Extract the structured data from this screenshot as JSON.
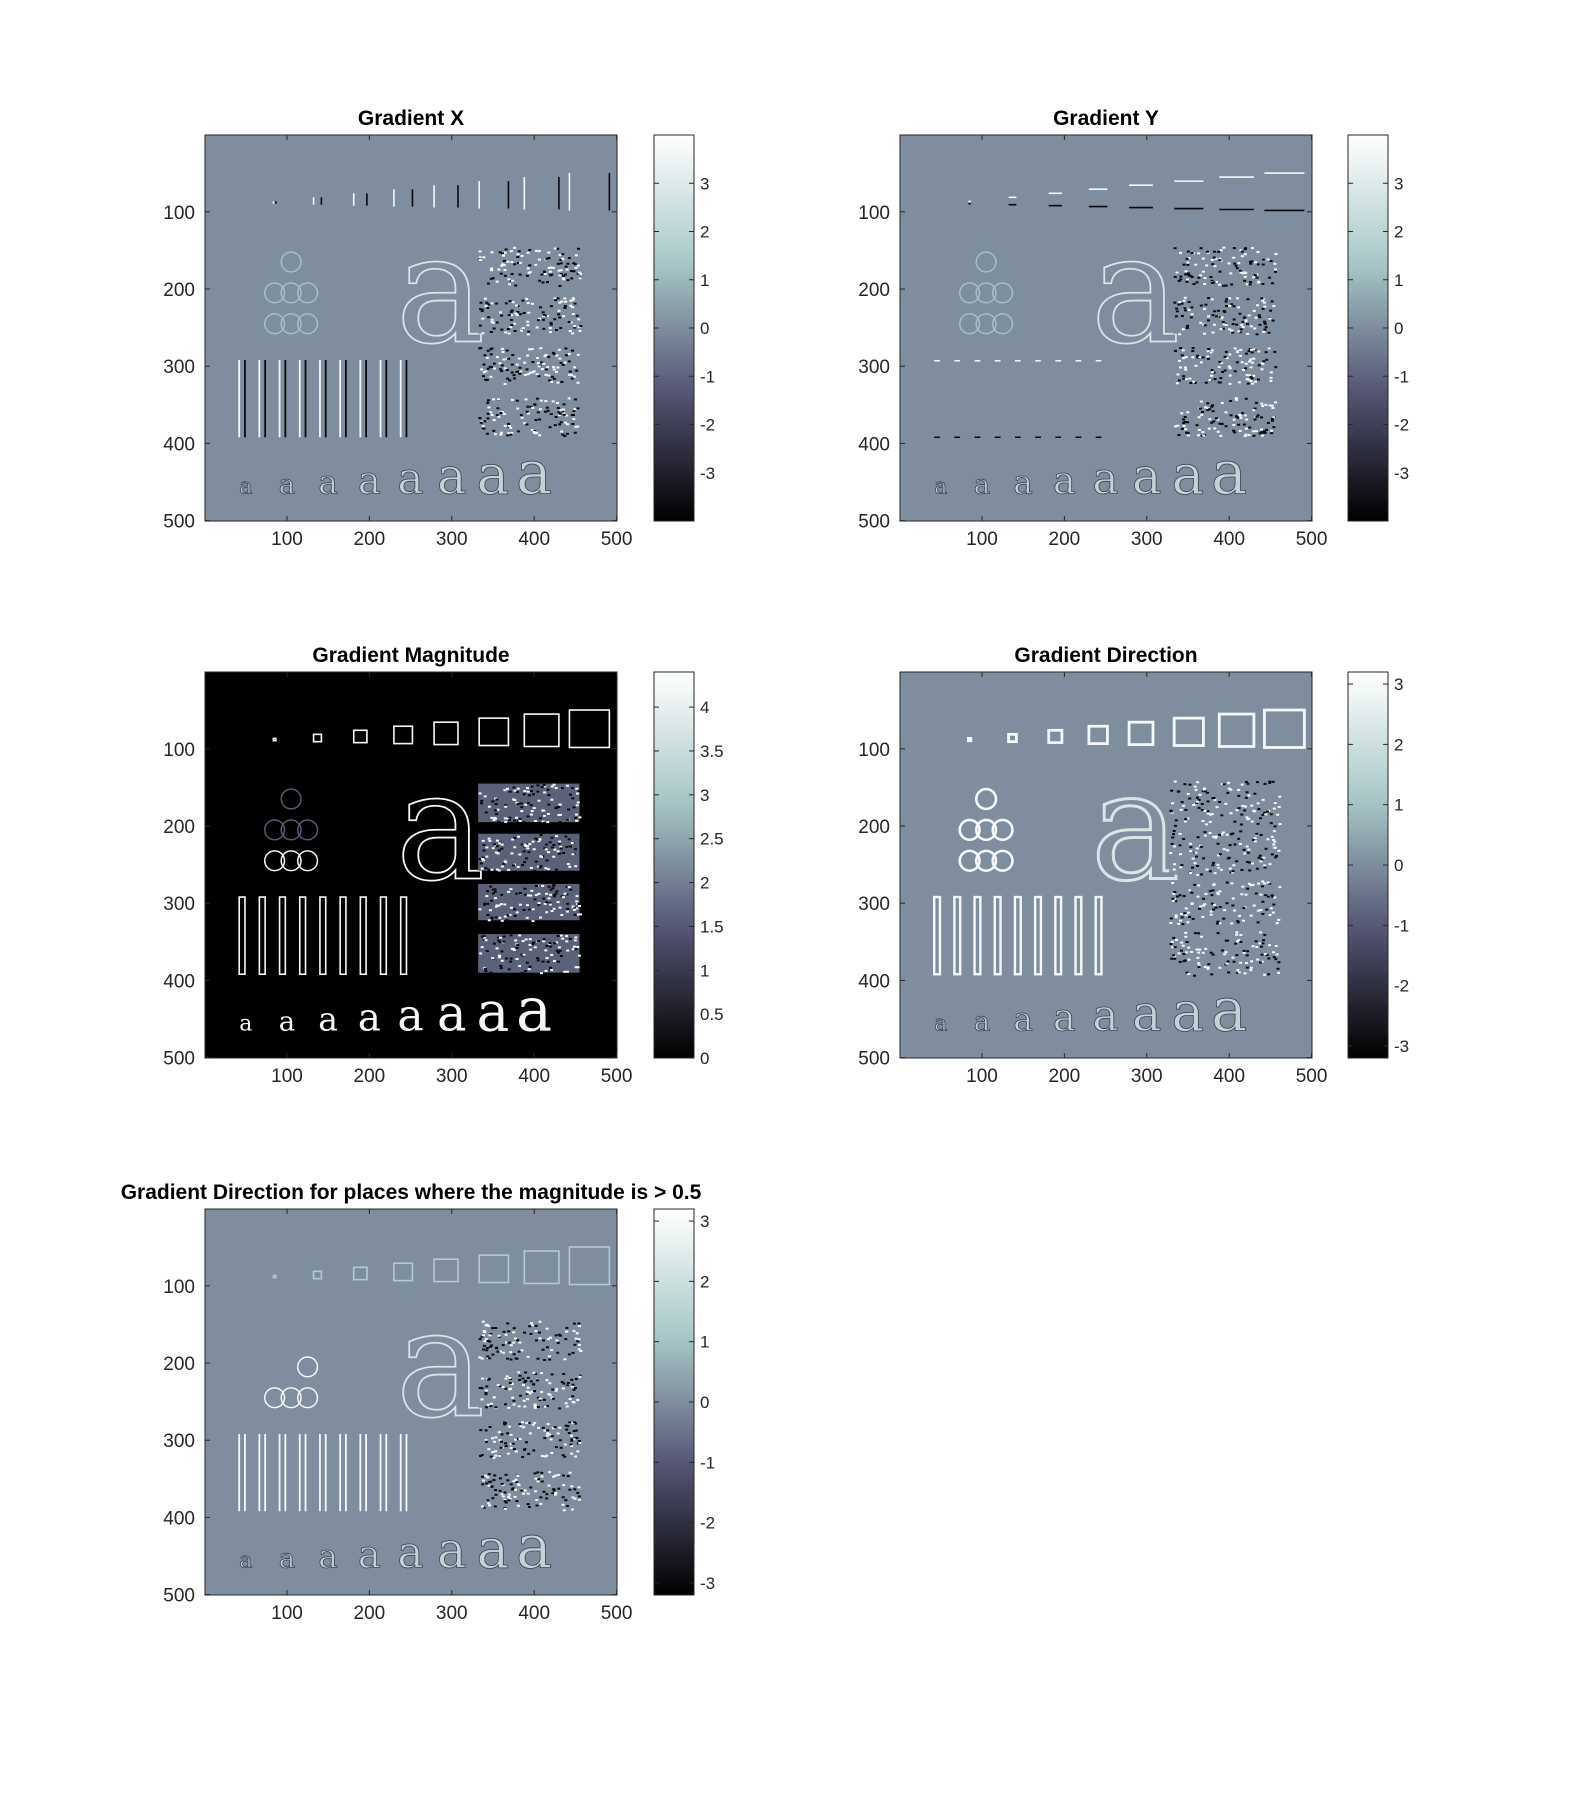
{
  "figure": {
    "colormap": "bone",
    "colormap_stops": [
      "#000000",
      "#545474",
      "#a7c7c7",
      "#ffffff"
    ],
    "image_motif": [
      "rectangles",
      "circles",
      "letter-a",
      "vertical-bars",
      "noise-rectangles",
      "small-letters-a"
    ]
  },
  "chart_data": [
    {
      "type": "heatmap",
      "name": "gradient-x",
      "title": "Gradient X",
      "xlabel": "",
      "ylabel": "",
      "xlim": [
        0.5,
        500.5
      ],
      "ylim": [
        0.5,
        500.5
      ],
      "y_reversed": true,
      "xticks": [
        100,
        200,
        300,
        400,
        500
      ],
      "yticks": [
        100,
        200,
        300,
        400,
        500
      ],
      "clim": [
        -4,
        4
      ],
      "cbticks": [
        -3,
        -2,
        -1,
        0,
        1,
        2,
        3
      ],
      "background_value": 0,
      "edge_style": "vertical"
    },
    {
      "type": "heatmap",
      "name": "gradient-y",
      "title": "Gradient Y",
      "xlabel": "",
      "ylabel": "",
      "xlim": [
        0.5,
        500.5
      ],
      "ylim": [
        0.5,
        500.5
      ],
      "y_reversed": true,
      "xticks": [
        100,
        200,
        300,
        400,
        500
      ],
      "yticks": [
        100,
        200,
        300,
        400,
        500
      ],
      "clim": [
        -4,
        4
      ],
      "cbticks": [
        -3,
        -2,
        -1,
        0,
        1,
        2,
        3
      ],
      "background_value": 0,
      "edge_style": "horizontal"
    },
    {
      "type": "heatmap",
      "name": "gradient-magnitude",
      "title": "Gradient Magnitude",
      "xlabel": "",
      "ylabel": "",
      "xlim": [
        0.5,
        500.5
      ],
      "ylim": [
        0.5,
        500.5
      ],
      "y_reversed": true,
      "xticks": [
        100,
        200,
        300,
        400,
        500
      ],
      "yticks": [
        100,
        200,
        300,
        400,
        500
      ],
      "clim": [
        0,
        4.4
      ],
      "cbticks": [
        0,
        0.5,
        1,
        1.5,
        2,
        2.5,
        3,
        3.5,
        4
      ],
      "background_value": 0,
      "edge_style": "outline"
    },
    {
      "type": "heatmap",
      "name": "gradient-direction",
      "title": "Gradient Direction",
      "xlabel": "",
      "ylabel": "",
      "xlim": [
        0.5,
        500.5
      ],
      "ylim": [
        0.5,
        500.5
      ],
      "y_reversed": true,
      "xticks": [
        100,
        200,
        300,
        400,
        500
      ],
      "yticks": [
        100,
        200,
        300,
        400,
        500
      ],
      "clim": [
        -3.2,
        3.2
      ],
      "cbticks": [
        -3,
        -2,
        -1,
        0,
        1,
        2,
        3
      ],
      "background_value": 0,
      "edge_style": "noisy"
    },
    {
      "type": "heatmap",
      "name": "gradient-direction-masked",
      "title": "Gradient Direction for places where the magnitude is > 0.5",
      "xlabel": "",
      "ylabel": "",
      "xlim": [
        0.5,
        500.5
      ],
      "ylim": [
        0.5,
        500.5
      ],
      "y_reversed": true,
      "xticks": [
        100,
        200,
        300,
        400,
        500
      ],
      "yticks": [
        100,
        200,
        300,
        400,
        500
      ],
      "clim": [
        -3.2,
        3.2
      ],
      "cbticks": [
        -3,
        -2,
        -1,
        0,
        1,
        2,
        3
      ],
      "background_value": 0,
      "edge_style": "masked"
    }
  ]
}
